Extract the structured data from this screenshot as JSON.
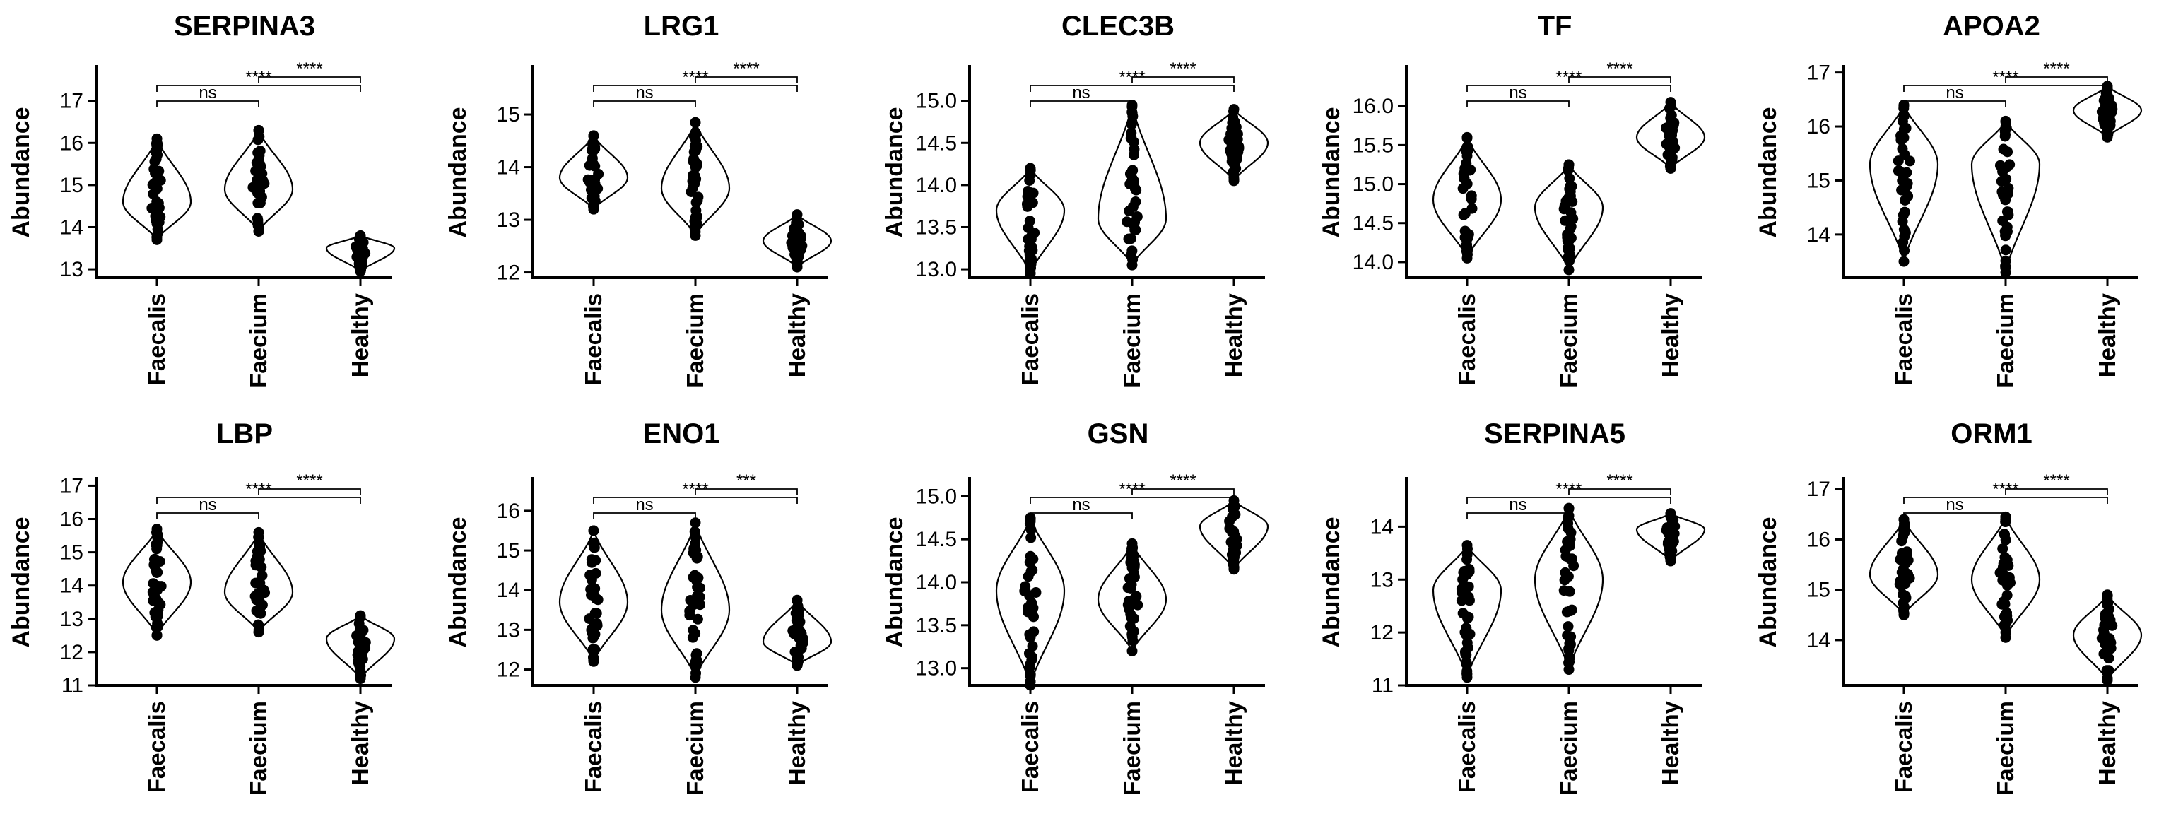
{
  "chart_data": [
    {
      "type": "violin",
      "title": "SERPINA3",
      "ylabel": "Abundance",
      "categories": [
        "Faecalis",
        "Faecium",
        "Healthy"
      ],
      "ylim": [
        12.8,
        17.8
      ],
      "yticks": [
        13,
        14,
        15,
        16,
        17
      ],
      "series": [
        {
          "min": 13.7,
          "max": 16.1,
          "median": 14.6
        },
        {
          "min": 13.9,
          "max": 16.3,
          "median": 14.9
        },
        {
          "min": 12.95,
          "max": 13.8,
          "median": 13.5
        }
      ],
      "comparisons": [
        {
          "pair": [
            0,
            1
          ],
          "label": "ns"
        },
        {
          "pair": [
            0,
            2
          ],
          "label": "****"
        },
        {
          "pair": [
            1,
            2
          ],
          "label": "****"
        }
      ]
    },
    {
      "type": "violin",
      "title": "LRG1",
      "ylabel": "Abundance",
      "categories": [
        "Faecalis",
        "Faecium",
        "Healthy"
      ],
      "ylim": [
        11.9,
        15.9
      ],
      "yticks": [
        12,
        13,
        14,
        15
      ],
      "series": [
        {
          "min": 13.2,
          "max": 14.6,
          "median": 13.8
        },
        {
          "min": 12.7,
          "max": 14.85,
          "median": 13.6
        },
        {
          "min": 12.1,
          "max": 13.1,
          "median": 12.6
        }
      ],
      "comparisons": [
        {
          "pair": [
            0,
            1
          ],
          "label": "ns"
        },
        {
          "pair": [
            0,
            2
          ],
          "label": "****"
        },
        {
          "pair": [
            1,
            2
          ],
          "label": "****"
        }
      ]
    },
    {
      "type": "violin",
      "title": "CLEC3B",
      "ylabel": "Abundance",
      "categories": [
        "Faecalis",
        "Faecium",
        "Healthy"
      ],
      "ylim": [
        12.9,
        15.4
      ],
      "yticks": [
        13.0,
        13.5,
        14.0,
        14.5,
        15.0
      ],
      "series": [
        {
          "min": 12.95,
          "max": 14.2,
          "median": 13.7
        },
        {
          "min": 13.05,
          "max": 14.95,
          "median": 13.6
        },
        {
          "min": 14.05,
          "max": 14.9,
          "median": 14.5
        }
      ],
      "comparisons": [
        {
          "pair": [
            0,
            1
          ],
          "label": "ns"
        },
        {
          "pair": [
            0,
            2
          ],
          "label": "****"
        },
        {
          "pair": [
            1,
            2
          ],
          "label": "****"
        }
      ]
    },
    {
      "type": "violin",
      "title": "TF",
      "ylabel": "Abundance",
      "categories": [
        "Faecalis",
        "Faecium",
        "Healthy"
      ],
      "ylim": [
        13.8,
        16.5
      ],
      "yticks": [
        14.0,
        14.5,
        15.0,
        15.5,
        16.0
      ],
      "series": [
        {
          "min": 14.05,
          "max": 15.6,
          "median": 14.8
        },
        {
          "min": 13.9,
          "max": 15.25,
          "median": 14.7
        },
        {
          "min": 15.2,
          "max": 16.05,
          "median": 15.6
        }
      ],
      "comparisons": [
        {
          "pair": [
            0,
            1
          ],
          "label": "ns"
        },
        {
          "pair": [
            0,
            2
          ],
          "label": "****"
        },
        {
          "pair": [
            1,
            2
          ],
          "label": "****"
        }
      ]
    },
    {
      "type": "violin",
      "title": "APOA2",
      "ylabel": "Abundance",
      "categories": [
        "Faecalis",
        "Faecium",
        "Healthy"
      ],
      "ylim": [
        13.2,
        17.1
      ],
      "yticks": [
        14,
        15,
        16,
        17
      ],
      "series": [
        {
          "min": 13.5,
          "max": 16.4,
          "median": 15.3
        },
        {
          "min": 13.3,
          "max": 16.1,
          "median": 15.3
        },
        {
          "min": 15.8,
          "max": 16.75,
          "median": 16.3
        }
      ],
      "comparisons": [
        {
          "pair": [
            0,
            1
          ],
          "label": "ns"
        },
        {
          "pair": [
            0,
            2
          ],
          "label": "****"
        },
        {
          "pair": [
            1,
            2
          ],
          "label": "****"
        }
      ]
    },
    {
      "type": "violin",
      "title": "LBP",
      "ylabel": "Abundance",
      "categories": [
        "Faecalis",
        "Faecium",
        "Healthy"
      ],
      "ylim": [
        11,
        17.2
      ],
      "yticks": [
        11,
        12,
        13,
        14,
        15,
        16,
        17
      ],
      "series": [
        {
          "min": 12.5,
          "max": 15.7,
          "median": 14.1
        },
        {
          "min": 12.6,
          "max": 15.6,
          "median": 13.8
        },
        {
          "min": 11.2,
          "max": 13.1,
          "median": 12.4
        }
      ],
      "comparisons": [
        {
          "pair": [
            0,
            1
          ],
          "label": "ns"
        },
        {
          "pair": [
            0,
            2
          ],
          "label": "****"
        },
        {
          "pair": [
            1,
            2
          ],
          "label": "****"
        }
      ]
    },
    {
      "type": "violin",
      "title": "ENO1",
      "ylabel": "Abundance",
      "categories": [
        "Faecalis",
        "Faecium",
        "Healthy"
      ],
      "ylim": [
        11.6,
        16.8
      ],
      "yticks": [
        12,
        13,
        14,
        15,
        16
      ],
      "series": [
        {
          "min": 12.2,
          "max": 15.5,
          "median": 13.7
        },
        {
          "min": 11.8,
          "max": 15.7,
          "median": 13.5
        },
        {
          "min": 12.1,
          "max": 13.75,
          "median": 12.7
        }
      ],
      "comparisons": [
        {
          "pair": [
            0,
            1
          ],
          "label": "ns"
        },
        {
          "pair": [
            0,
            2
          ],
          "label": "****"
        },
        {
          "pair": [
            1,
            2
          ],
          "label": "***"
        }
      ]
    },
    {
      "type": "violin",
      "title": "GSN",
      "ylabel": "Abundance",
      "categories": [
        "Faecalis",
        "Faecium",
        "Healthy"
      ],
      "ylim": [
        12.8,
        15.2
      ],
      "yticks": [
        13.0,
        13.5,
        14.0,
        14.5,
        15.0
      ],
      "series": [
        {
          "min": 12.8,
          "max": 14.75,
          "median": 13.9
        },
        {
          "min": 13.2,
          "max": 14.45,
          "median": 13.8
        },
        {
          "min": 14.15,
          "max": 14.95,
          "median": 14.65
        }
      ],
      "comparisons": [
        {
          "pair": [
            0,
            1
          ],
          "label": "ns"
        },
        {
          "pair": [
            0,
            2
          ],
          "label": "****"
        },
        {
          "pair": [
            1,
            2
          ],
          "label": "****"
        }
      ]
    },
    {
      "type": "violin",
      "title": "SERPINA5",
      "ylabel": "Abundance",
      "categories": [
        "Faecalis",
        "Faecium",
        "Healthy"
      ],
      "ylim": [
        11,
        14.9
      ],
      "yticks": [
        11,
        12,
        13,
        14
      ],
      "series": [
        {
          "min": 11.15,
          "max": 13.65,
          "median": 12.8
        },
        {
          "min": 11.3,
          "max": 14.35,
          "median": 13.0
        },
        {
          "min": 13.35,
          "max": 14.25,
          "median": 13.95
        }
      ],
      "comparisons": [
        {
          "pair": [
            0,
            1
          ],
          "label": "ns"
        },
        {
          "pair": [
            0,
            2
          ],
          "label": "****"
        },
        {
          "pair": [
            1,
            2
          ],
          "label": "****"
        }
      ]
    },
    {
      "type": "violin",
      "title": "ORM1",
      "ylabel": "Abundance",
      "categories": [
        "Faecalis",
        "Faecium",
        "Healthy"
      ],
      "ylim": [
        13.1,
        17.2
      ],
      "yticks": [
        14,
        15,
        16,
        17
      ],
      "series": [
        {
          "min": 14.5,
          "max": 16.4,
          "median": 15.3
        },
        {
          "min": 14.05,
          "max": 16.45,
          "median": 15.2
        },
        {
          "min": 13.2,
          "max": 14.9,
          "median": 14.1
        }
      ],
      "comparisons": [
        {
          "pair": [
            0,
            1
          ],
          "label": "ns"
        },
        {
          "pair": [
            0,
            2
          ],
          "label": "****"
        },
        {
          "pair": [
            1,
            2
          ],
          "label": "****"
        }
      ]
    }
  ]
}
